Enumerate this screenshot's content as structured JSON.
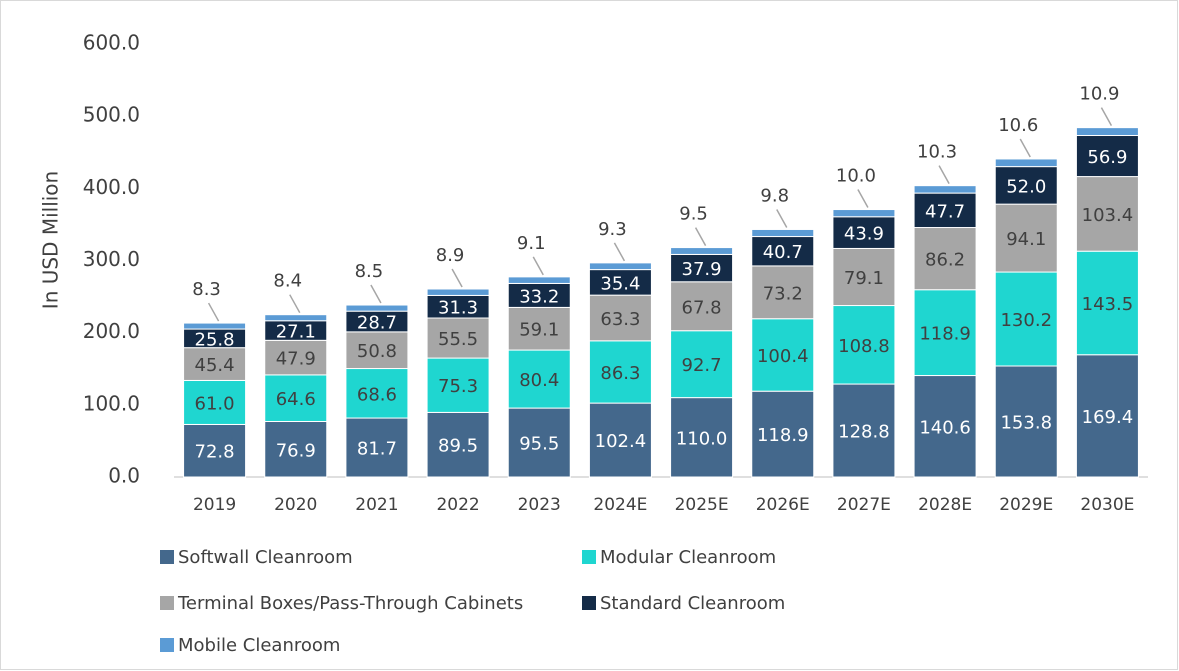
{
  "chart_data": {
    "type": "stacked_bar",
    "ylabel": "In USD Million",
    "categories": [
      "2019",
      "2020",
      "2021",
      "2022",
      "2023",
      "2024E",
      "2025E",
      "2026E",
      "2027E",
      "2028E",
      "2029E",
      "2030E"
    ],
    "ylim": [
      0,
      600
    ],
    "yticks": [
      {
        "value": 0,
        "label": "0.0"
      },
      {
        "value": 100,
        "label": "100.0"
      },
      {
        "value": 200,
        "label": "200.0"
      },
      {
        "value": 300,
        "label": "300.0"
      },
      {
        "value": 400,
        "label": "400.0"
      },
      {
        "value": 500,
        "label": "500.0"
      },
      {
        "value": 600,
        "label": "600.0"
      }
    ],
    "series": [
      {
        "name": "Softwall Cleanroom",
        "color": "#44688c",
        "label_color": "#ffffff",
        "values": [
          72.8,
          76.9,
          81.7,
          89.5,
          95.5,
          102.4,
          110.0,
          118.9,
          128.8,
          140.6,
          153.8,
          169.4
        ],
        "value_labels": [
          "72.8",
          "76.9",
          "81.7",
          "89.5",
          "95.5",
          "102.4",
          "110.0",
          "118.9",
          "128.8",
          "140.6",
          "153.8",
          "169.4"
        ]
      },
      {
        "name": "Modular Cleanroom",
        "color": "#1fd6d0",
        "label_color": "#404040",
        "values": [
          61.0,
          64.6,
          68.6,
          75.3,
          80.4,
          86.3,
          92.7,
          100.4,
          108.8,
          118.9,
          130.2,
          143.5
        ],
        "value_labels": [
          "61.0",
          "64.6",
          "68.6",
          "75.3",
          "80.4",
          "86.3",
          "92.7",
          "100.4",
          "108.8",
          "118.9",
          "130.2",
          "143.5"
        ]
      },
      {
        "name": "Terminal Boxes/Pass-Through Cabinets",
        "color": "#a6a6a6",
        "label_color": "#404040",
        "values": [
          45.4,
          47.9,
          50.8,
          55.5,
          59.1,
          63.3,
          67.8,
          73.2,
          79.1,
          86.2,
          94.1,
          103.4
        ],
        "value_labels": [
          "45.4",
          "47.9",
          "50.8",
          "55.5",
          "59.1",
          "63.3",
          "67.8",
          "73.2",
          "79.1",
          "86.2",
          "94.1",
          "103.4"
        ]
      },
      {
        "name": "Standard Cleanroom",
        "color": "#142b47",
        "label_color": "#ffffff",
        "values": [
          25.8,
          27.1,
          28.7,
          31.3,
          33.2,
          35.4,
          37.9,
          40.7,
          43.9,
          47.7,
          52.0,
          56.9
        ],
        "value_labels": [
          "25.8",
          "27.1",
          "28.7",
          "31.3",
          "33.2",
          "35.4",
          "37.9",
          "40.7",
          "43.9",
          "47.7",
          "52.0",
          "56.9"
        ]
      },
      {
        "name": "Mobile Cleanroom",
        "color": "#5b9bd5",
        "label_color": "#404040",
        "values": [
          8.3,
          8.4,
          8.5,
          8.9,
          9.1,
          9.3,
          9.5,
          9.8,
          10.0,
          10.3,
          10.6,
          10.9
        ],
        "value_labels": [
          "8.3",
          "8.4",
          "8.5",
          "8.9",
          "9.1",
          "9.3",
          "9.5",
          "9.8",
          "10.0",
          "10.3",
          "10.6",
          "10.9"
        ]
      }
    ]
  }
}
